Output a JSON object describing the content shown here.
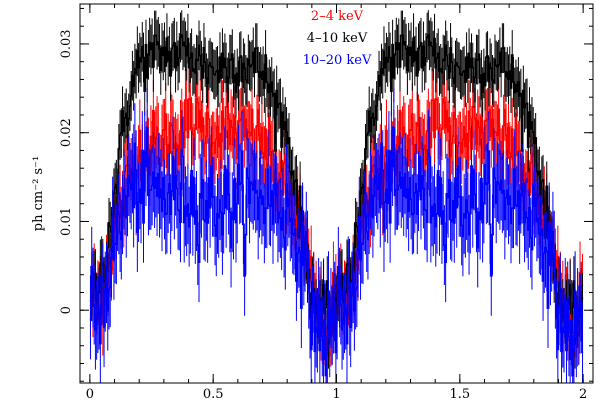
{
  "chart_data": {
    "type": "line",
    "title": "",
    "xlabel": "",
    "ylabel": "ph cm⁻² s⁻¹",
    "xlim": [
      -0.04,
      2.04
    ],
    "ylim": [
      -0.0082,
      0.0345
    ],
    "x_ticks": [
      {
        "value": 0,
        "label": "0"
      },
      {
        "value": 0.5,
        "label": "0.5"
      },
      {
        "value": 1,
        "label": "1"
      },
      {
        "value": 1.5,
        "label": "1.5"
      },
      {
        "value": 2,
        "label": "2"
      }
    ],
    "y_ticks": [
      {
        "value": 0,
        "label": "0"
      },
      {
        "value": 0.01,
        "label": "0.01"
      },
      {
        "value": 0.02,
        "label": "0.02"
      },
      {
        "value": 0.03,
        "label": "0.03"
      }
    ],
    "grid": false,
    "legend_position": "top-center",
    "series": [
      {
        "name": "2–4 keV",
        "color": "#ff0000",
        "x_step": 0.005,
        "error": 0.0035,
        "profile_phase": [
          0,
          0.05,
          0.1,
          0.15,
          0.2,
          0.3,
          0.4,
          0.5,
          0.6,
          0.7,
          0.8,
          0.85,
          0.88,
          0.92,
          0.96,
          1.0
        ],
        "profile_value": [
          0.001,
          0.002,
          0.009,
          0.014,
          0.018,
          0.019,
          0.021,
          0.02,
          0.02,
          0.019,
          0.013,
          0.01,
          0.005,
          0.0,
          -0.002,
          0.001
        ]
      },
      {
        "name": "4–10 keV",
        "color": "#000000",
        "x_step": 0.005,
        "error": 0.0028,
        "profile_phase": [
          0,
          0.05,
          0.1,
          0.15,
          0.2,
          0.3,
          0.4,
          0.5,
          0.6,
          0.7,
          0.8,
          0.85,
          0.88,
          0.92,
          0.96,
          1.0
        ],
        "profile_value": [
          0.0005,
          0.004,
          0.013,
          0.023,
          0.028,
          0.029,
          0.029,
          0.027,
          0.028,
          0.027,
          0.02,
          0.011,
          0.005,
          0.0,
          -0.001,
          0.0005
        ]
      },
      {
        "name": "10–20 keV",
        "color": "#0000ff",
        "x_step": 0.005,
        "error": 0.0045,
        "profile_phase": [
          0,
          0.05,
          0.1,
          0.15,
          0.2,
          0.3,
          0.4,
          0.5,
          0.6,
          0.7,
          0.8,
          0.85,
          0.88,
          0.92,
          0.96,
          1.0
        ],
        "profile_value": [
          -0.001,
          0.001,
          0.007,
          0.013,
          0.014,
          0.013,
          0.013,
          0.012,
          0.012,
          0.013,
          0.011,
          0.008,
          0.003,
          -0.002,
          -0.003,
          -0.001
        ]
      }
    ]
  }
}
